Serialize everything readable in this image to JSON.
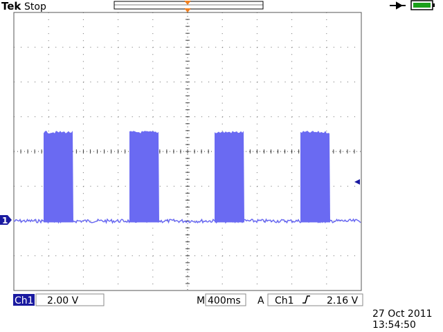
{
  "header": {
    "brand": "Tek",
    "status": "Stop"
  },
  "channel_marker": "1",
  "status_bar": {
    "channel": "Ch1",
    "scale": "2.00 V",
    "time_prefix": "M",
    "timebase": "400ms",
    "trigger_prefix": "A",
    "trigger_source": "Ch1",
    "trigger_level": "2.16 V"
  },
  "timestamp": {
    "date": "27 Oct 2011",
    "time": "13:54:50"
  }
}
